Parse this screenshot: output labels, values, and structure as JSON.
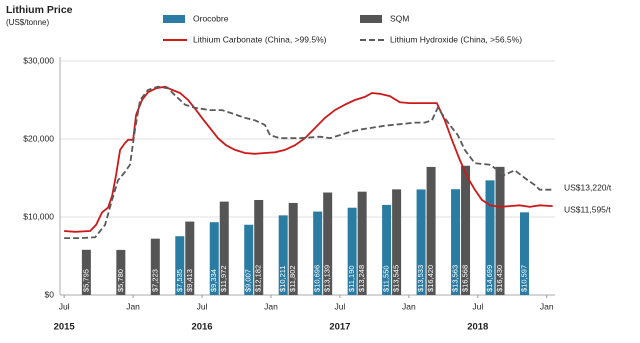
{
  "chart_data": {
    "type": "combo",
    "title": "Lithium Price",
    "subtitle": "(US$/tonne)",
    "xlim": [
      2015.47,
      2019.06
    ],
    "xticks": [
      {
        "value": 2015.5,
        "label": "Jul"
      },
      {
        "value": 2016.0,
        "label": "Jan"
      },
      {
        "value": 2016.5,
        "label": "Jul"
      },
      {
        "value": 2017.0,
        "label": "Jan"
      },
      {
        "value": 2017.5,
        "label": "Jul"
      },
      {
        "value": 2018.0,
        "label": "Jan"
      },
      {
        "value": 2018.5,
        "label": "Jul"
      },
      {
        "value": 2019.0,
        "label": "Jan"
      }
    ],
    "year_labels": [
      {
        "value": 2015.5,
        "label": "2015"
      },
      {
        "value": 2016.5,
        "label": "2016"
      },
      {
        "value": 2017.5,
        "label": "2017"
      },
      {
        "value": 2018.5,
        "label": "2018"
      }
    ],
    "ylim": [
      0,
      30000
    ],
    "yticks": [
      {
        "value": 0,
        "label": "$0"
      },
      {
        "value": 10000,
        "label": "$10,000"
      },
      {
        "value": 20000,
        "label": "$20,000"
      },
      {
        "value": 30000,
        "label": "$30,000"
      }
    ],
    "grid": true,
    "bar_x": [
      2015.625,
      2015.875,
      2016.125,
      2016.375,
      2016.625,
      2016.875,
      2017.125,
      2017.375,
      2017.625,
      2017.875,
      2018.125,
      2018.375,
      2018.625,
      2018.875
    ],
    "series": [
      {
        "name": "Orocobre",
        "type": "bar",
        "color": "#2b7ca3",
        "values": [
          null,
          null,
          null,
          7535,
          9334,
          9007,
          10211,
          10696,
          11190,
          11550,
          13533,
          13563,
          14699,
          10597
        ],
        "value_labels": [
          null,
          null,
          null,
          "$7,535",
          "$9,334",
          "$9,007",
          "$10,211",
          "$10,696",
          "$11,190",
          "$11,550",
          "$13,533",
          "$13,563",
          "$14,699",
          "$10,597"
        ]
      },
      {
        "name": "SQM",
        "type": "bar",
        "color": "#555555",
        "values": [
          5795,
          5780,
          7223,
          9413,
          11972,
          12182,
          11802,
          13139,
          13248,
          13545,
          16420,
          16568,
          16430,
          null
        ],
        "value_labels": [
          "$5,795",
          "$5,780",
          "$7,223",
          "$9,413",
          "$11,972",
          "$12,182",
          "$11,802",
          "$13,139",
          "$13,248",
          "$13,545",
          "$16,420",
          "$16,568",
          "$16,430",
          null
        ]
      },
      {
        "name": "Lithium Carbonate (China, >99.5%)",
        "type": "line",
        "color": "#cc1a1a",
        "dash": false,
        "x": [
          2015.5,
          2015.58,
          2015.688,
          2015.732,
          2015.775,
          2015.819,
          2015.848,
          2015.877,
          2015.906,
          2015.942,
          2015.964,
          2016.0,
          2016.022,
          2016.065,
          2016.109,
          2016.167,
          2016.232,
          2016.283,
          2016.341,
          2016.399,
          2016.457,
          2016.5,
          2016.558,
          2016.616,
          2016.674,
          2016.739,
          2016.812,
          2016.884,
          2016.957,
          2017.029,
          2017.101,
          2017.174,
          2017.246,
          2017.319,
          2017.391,
          2017.464,
          2017.536,
          2017.609,
          2017.681,
          2017.732,
          2017.79,
          2017.862,
          2017.935,
          2018.007,
          2018.116,
          2018.203,
          2018.261,
          2018.312,
          2018.37,
          2018.428,
          2018.478,
          2018.529,
          2018.587,
          2018.659,
          2018.732,
          2018.804,
          2018.877,
          2018.949,
          2019.043
        ],
        "values": [
          8200,
          8100,
          8200,
          9000,
          10600,
          11200,
          12700,
          15400,
          18600,
          19500,
          19900,
          19900,
          23100,
          25000,
          26000,
          26500,
          26700,
          26300,
          25900,
          25000,
          23700,
          22700,
          21400,
          20100,
          19200,
          18600,
          18200,
          18100,
          18200,
          18300,
          18600,
          19200,
          20100,
          21400,
          22700,
          23700,
          24400,
          25000,
          25400,
          25900,
          25800,
          25500,
          24700,
          24600,
          24600,
          24600,
          22400,
          19900,
          17300,
          15000,
          13500,
          12200,
          11500,
          11300,
          11400,
          11500,
          11300,
          11500,
          11400
        ]
      },
      {
        "name": "Lithium Hydroxide (China, >56.5%)",
        "type": "line",
        "color": "#5a5a5a",
        "dash": true,
        "x": [
          2015.5,
          2015.616,
          2015.725,
          2015.797,
          2015.848,
          2015.891,
          2015.942,
          2015.978,
          2016.014,
          2016.051,
          2016.109,
          2016.181,
          2016.254,
          2016.304,
          2016.377,
          2016.449,
          2016.558,
          2016.645,
          2016.717,
          2016.812,
          2016.884,
          2016.957,
          2016.993,
          2017.065,
          2017.21,
          2017.355,
          2017.428,
          2017.5,
          2017.572,
          2017.645,
          2017.717,
          2017.826,
          2017.935,
          2018.043,
          2018.116,
          2018.167,
          2018.21,
          2018.261,
          2018.297,
          2018.355,
          2018.406,
          2018.478,
          2018.587,
          2018.696,
          2018.768,
          2018.841,
          2018.913,
          2018.949,
          2019.043
        ],
        "values": [
          7300,
          7300,
          7400,
          9000,
          12200,
          14700,
          15800,
          16700,
          21200,
          25000,
          26300,
          26700,
          26500,
          25600,
          24400,
          24000,
          23700,
          23700,
          23300,
          22700,
          22400,
          21800,
          20500,
          20100,
          20100,
          20300,
          20100,
          20500,
          20900,
          21200,
          21400,
          21700,
          21900,
          22100,
          22100,
          22400,
          24000,
          22700,
          21800,
          20500,
          18600,
          16900,
          16700,
          15400,
          16000,
          15000,
          14100,
          13500,
          13500
        ]
      }
    ],
    "annotations": [
      "US$13,220/t",
      "US$11,595/t"
    ]
  }
}
